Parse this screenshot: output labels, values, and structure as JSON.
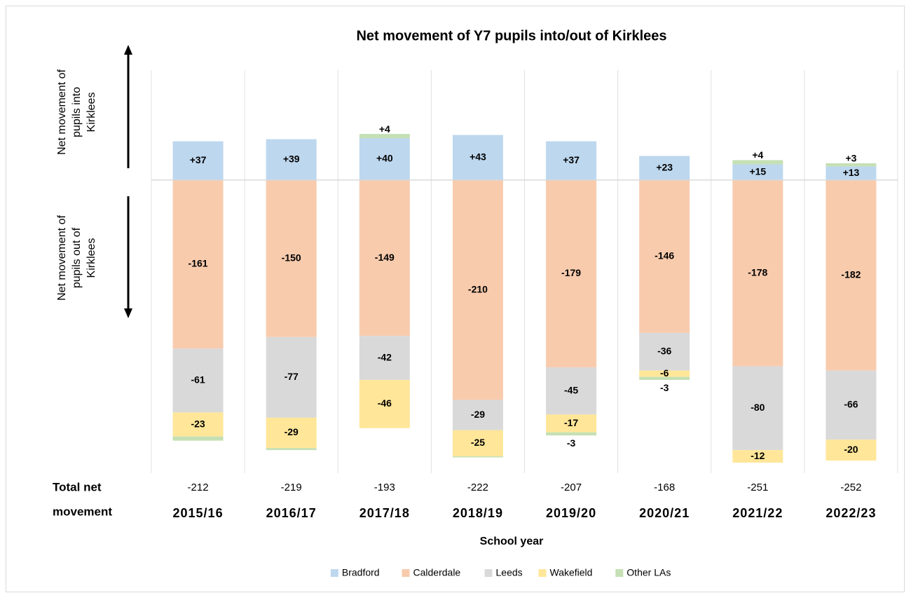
{
  "chart_data": {
    "type": "stacked_bar",
    "title": "Net movement of Y7 pupils into/out of Kirklees",
    "x_label": "School year",
    "categories": [
      "2015/16",
      "2016/17",
      "2017/18",
      "2018/19",
      "2019/20",
      "2020/21",
      "2021/22",
      "2022/23"
    ],
    "series": [
      {
        "name": "Bradford",
        "color": "#bdd7ee",
        "values": [
          37,
          39,
          40,
          43,
          37,
          23,
          15,
          13
        ],
        "value_labels": [
          "+37",
          "+39",
          "+40",
          "+43",
          "+37",
          "+23",
          "+15",
          "+13"
        ]
      },
      {
        "name": "Calderdale",
        "color": "#f8cbad",
        "values": [
          -161,
          -150,
          -149,
          -210,
          -179,
          -146,
          -178,
          -182
        ]
      },
      {
        "name": "Leeds",
        "color": "#d9d9d9",
        "values": [
          -61,
          -77,
          -42,
          -29,
          -45,
          -36,
          -80,
          -66
        ]
      },
      {
        "name": "Wakefield",
        "color": "#ffe699",
        "values": [
          -23,
          -29,
          -46,
          -25,
          -17,
          -6,
          -12,
          -20
        ]
      },
      {
        "name": "Other LAs",
        "color": "#c5e0b4",
        "values": [
          -4,
          -2,
          4,
          -1,
          -3,
          -3,
          4,
          3
        ],
        "value_labels": [
          null,
          null,
          "+4",
          null,
          "-3",
          "-3",
          "+4",
          "+3"
        ]
      }
    ],
    "totals_label": [
      "Total net",
      "movement"
    ],
    "totals": [
      -212,
      -219,
      -193,
      -222,
      -207,
      -168,
      -251,
      -252
    ],
    "annotations": [
      [
        "Net movement of",
        "pupils into",
        "Kirklees"
      ],
      [
        "Net movement of",
        "pupils out of",
        "Kirklees"
      ]
    ],
    "ylim": [
      -280,
      105
    ],
    "legend": "bottom"
  }
}
